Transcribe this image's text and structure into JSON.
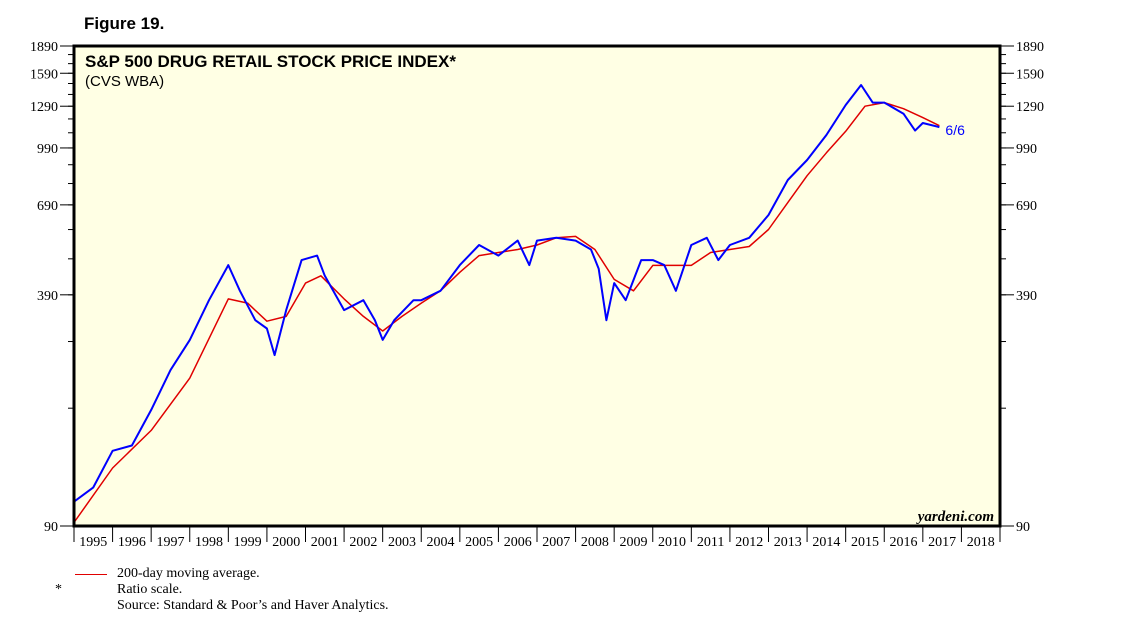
{
  "figure_label": "Figure 19.",
  "chart_data": {
    "type": "line",
    "title": "S&P 500 DRUG RETAIL STOCK PRICE INDEX*",
    "subtitle": "(CVS WBA)",
    "scale": "log",
    "ylim": [
      90,
      1890
    ],
    "y_ticks": [
      90,
      390,
      690,
      990,
      1290,
      1590,
      1890
    ],
    "xlim": [
      1995,
      2019
    ],
    "x_tick_labels": [
      "1995",
      "1996",
      "1997",
      "1998",
      "1999",
      "2000",
      "2001",
      "2002",
      "2003",
      "2004",
      "2005",
      "2006",
      "2007",
      "2008",
      "2009",
      "2010",
      "2011",
      "2012",
      "2013",
      "2014",
      "2015",
      "2016",
      "2017",
      "2018"
    ],
    "grid": false,
    "end_label": "6/6",
    "watermark": "yardeni.com",
    "colors": {
      "price": "#0000ff",
      "moving_average": "#e00000",
      "background": "#ffffe4"
    },
    "series": [
      {
        "key": "price",
        "x": [
          1995.0,
          1995.5,
          1996.0,
          1996.5,
          1997.0,
          1997.5,
          1998.0,
          1998.5,
          1999.0,
          1999.3,
          1999.7,
          2000.0,
          2000.2,
          2000.5,
          2000.9,
          2001.3,
          2001.5,
          2002.0,
          2002.5,
          2002.8,
          2003.0,
          2003.3,
          2003.8,
          2004.0,
          2004.5,
          2005.0,
          2005.5,
          2006.0,
          2006.5,
          2006.8,
          2007.0,
          2007.5,
          2008.0,
          2008.4,
          2008.6,
          2008.8,
          2009.0,
          2009.3,
          2009.7,
          2010.0,
          2010.3,
          2010.6,
          2011.0,
          2011.4,
          2011.7,
          2012.0,
          2012.5,
          2013.0,
          2013.5,
          2014.0,
          2014.5,
          2015.0,
          2015.4,
          2015.7,
          2016.0,
          2016.5,
          2016.8,
          2017.0,
          2017.43
        ],
        "y": [
          105,
          115,
          145,
          150,
          188,
          242,
          293,
          377,
          471,
          400,
          332,
          315,
          266,
          354,
          486,
          500,
          440,
          354,
          377,
          332,
          293,
          332,
          377,
          377,
          400,
          471,
          535,
          500,
          550,
          471,
          550,
          560,
          550,
          520,
          460,
          332,
          420,
          377,
          486,
          486,
          471,
          400,
          535,
          560,
          486,
          535,
          560,
          647,
          808,
          917,
          1075,
          1300,
          1476,
          1320,
          1320,
          1230,
          1105,
          1160,
          1130
        ]
      },
      {
        "key": "moving_average",
        "name": "200-day moving average.",
        "x": [
          1995.0,
          1996.0,
          1997.0,
          1998.0,
          1999.0,
          1999.5,
          2000.0,
          2000.5,
          2001.0,
          2001.4,
          2002.0,
          2002.5,
          2003.0,
          2003.5,
          2004.0,
          2004.5,
          2005.0,
          2005.5,
          2006.0,
          2006.5,
          2007.0,
          2007.5,
          2008.0,
          2008.5,
          2009.0,
          2009.5,
          2010.0,
          2010.5,
          2011.0,
          2011.5,
          2012.0,
          2012.5,
          2013.0,
          2013.5,
          2014.0,
          2014.5,
          2015.0,
          2015.5,
          2016.0,
          2016.5,
          2017.0,
          2017.43
        ],
        "y": [
          92,
          130,
          165,
          230,
          380,
          370,
          330,
          340,
          420,
          440,
          380,
          340,
          310,
          340,
          370,
          400,
          450,
          500,
          510,
          520,
          535,
          560,
          565,
          520,
          430,
          400,
          470,
          470,
          470,
          510,
          520,
          530,
          590,
          700,
          830,
          960,
          1100,
          1290,
          1320,
          1270,
          1200,
          1140
        ]
      }
    ]
  },
  "notes": {
    "legend": "200-day moving average.",
    "star": "*",
    "ratio": "Ratio scale.",
    "source": "Source: Standard & Poor’s and Haver Analytics."
  }
}
